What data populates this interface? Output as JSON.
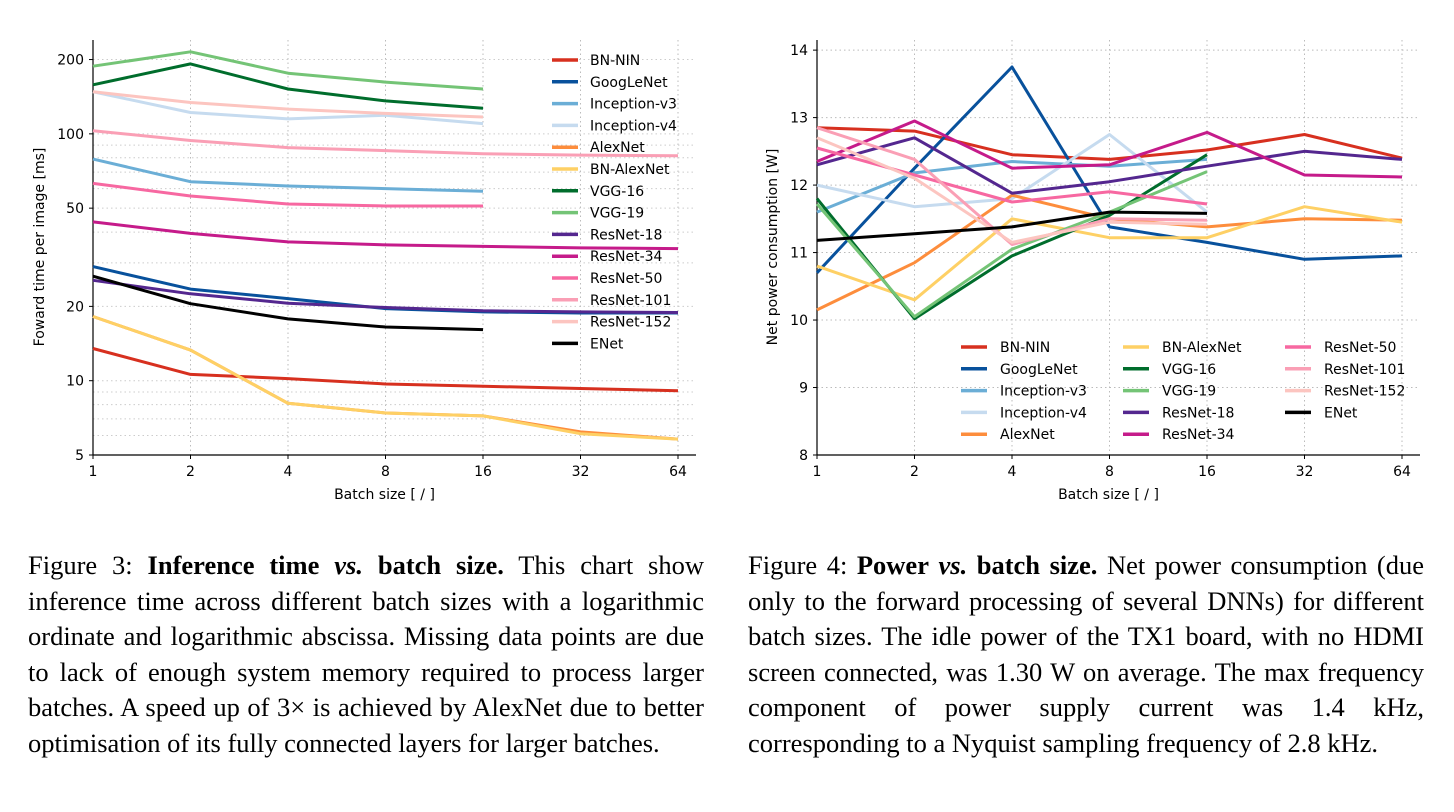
{
  "colors": {
    "BN-NIN": "#d7301f",
    "GoogLeNet": "#08519c",
    "Inception-v3": "#6baed6",
    "Inception-v4": "#c6dbef",
    "AlexNet": "#fd8d3c",
    "BN-AlexNet": "#fed065",
    "VGG-16": "#006d2c",
    "VGG-19": "#74c476",
    "ResNet-18": "#54278f",
    "ResNet-34": "#c51b8a",
    "ResNet-50": "#f768a1",
    "ResNet-101": "#fa9fb5",
    "ResNet-152": "#fcc5c0",
    "ENet": "#000000"
  },
  "chart_data": [
    {
      "type": "line",
      "xscale": "log2",
      "yscale": "log",
      "x": [
        1,
        2,
        4,
        8,
        16,
        32,
        64
      ],
      "xticks": [
        "1",
        "2",
        "4",
        "8",
        "16",
        "32",
        "64"
      ],
      "yticks": [
        5,
        10,
        20,
        50,
        100,
        200
      ],
      "ylim": [
        5,
        240
      ],
      "xlabel": "Batch size [ / ]",
      "ylabel": "Foward time per image [ms]",
      "legend": "top-right",
      "grid": true,
      "series": [
        {
          "name": "BN-NIN",
          "values": [
            13.5,
            10.6,
            10.2,
            9.7,
            9.5,
            9.3,
            9.1
          ]
        },
        {
          "name": "GoogLeNet",
          "values": [
            29,
            23.5,
            21.5,
            19.6,
            19,
            18.8,
            18.8
          ]
        },
        {
          "name": "Inception-v3",
          "values": [
            79,
            64,
            61.5,
            60,
            58.5,
            null,
            null
          ]
        },
        {
          "name": "Inception-v4",
          "values": [
            148,
            122,
            115,
            119,
            110,
            null,
            null
          ]
        },
        {
          "name": "AlexNet",
          "values": [
            18.2,
            13.3,
            8.1,
            7.4,
            7.2,
            6.2,
            5.8
          ]
        },
        {
          "name": "BN-AlexNet",
          "values": [
            18.2,
            13.3,
            8.1,
            7.4,
            7.2,
            6.1,
            5.8
          ]
        },
        {
          "name": "VGG-16",
          "values": [
            158,
            192,
            152,
            136,
            127,
            null,
            null
          ]
        },
        {
          "name": "VGG-19",
          "values": [
            188,
            215,
            176,
            162,
            152,
            null,
            null
          ]
        },
        {
          "name": "ResNet-18",
          "values": [
            25.5,
            22.5,
            20.6,
            19.8,
            19.2,
            19.0,
            18.9
          ]
        },
        {
          "name": "ResNet-34",
          "values": [
            44,
            39.5,
            36.5,
            35.5,
            35,
            34.5,
            34.3
          ]
        },
        {
          "name": "ResNet-50",
          "values": [
            63,
            56,
            52,
            51,
            51,
            null,
            null
          ]
        },
        {
          "name": "ResNet-101",
          "values": [
            103,
            94,
            88,
            85.5,
            83,
            82,
            81.5
          ]
        },
        {
          "name": "ResNet-152",
          "values": [
            148,
            134,
            126,
            121,
            117,
            null,
            null
          ]
        },
        {
          "name": "ENet",
          "values": [
            26.5,
            20.5,
            17.8,
            16.5,
            16.1,
            null,
            null
          ]
        }
      ]
    },
    {
      "type": "line",
      "xscale": "log2",
      "x": [
        1,
        2,
        4,
        8,
        16,
        32,
        64
      ],
      "xticks": [
        "1",
        "2",
        "4",
        "8",
        "16",
        "32",
        "64"
      ],
      "yticks": [
        8,
        9,
        10,
        11,
        12,
        13,
        14
      ],
      "ylim": [
        8,
        14.15
      ],
      "xlabel": "Batch size [ / ]",
      "ylabel": "Net power consumption [W]",
      "legend": "bottom-right, 3 columns",
      "grid": true,
      "series": [
        {
          "name": "BN-NIN",
          "values": [
            12.85,
            12.8,
            12.45,
            12.38,
            12.52,
            12.75,
            12.4
          ]
        },
        {
          "name": "GoogLeNet",
          "values": [
            10.7,
            12.25,
            13.75,
            11.38,
            11.15,
            10.9,
            10.95
          ]
        },
        {
          "name": "Inception-v3",
          "values": [
            11.6,
            12.18,
            12.35,
            12.28,
            12.38,
            null,
            null
          ]
        },
        {
          "name": "Inception-v4",
          "values": [
            12.0,
            11.68,
            11.8,
            12.75,
            11.6,
            null,
            null
          ]
        },
        {
          "name": "AlexNet",
          "values": [
            10.15,
            10.85,
            11.85,
            11.5,
            11.38,
            11.5,
            11.48
          ]
        },
        {
          "name": "BN-AlexNet",
          "values": [
            10.8,
            10.3,
            11.5,
            11.22,
            11.22,
            11.68,
            11.45
          ]
        },
        {
          "name": "VGG-16",
          "values": [
            11.8,
            10.02,
            10.95,
            11.55,
            12.45,
            null,
            null
          ]
        },
        {
          "name": "VGG-19",
          "values": [
            11.72,
            10.05,
            11.05,
            11.6,
            12.2,
            null,
            null
          ]
        },
        {
          "name": "ResNet-18",
          "values": [
            12.3,
            12.7,
            11.88,
            12.05,
            12.28,
            12.5,
            12.38
          ]
        },
        {
          "name": "ResNet-34",
          "values": [
            12.35,
            12.95,
            12.25,
            12.3,
            12.78,
            12.15,
            12.12
          ]
        },
        {
          "name": "ResNet-50",
          "values": [
            12.55,
            12.15,
            11.75,
            11.9,
            11.72,
            null,
            null
          ]
        },
        {
          "name": "ResNet-101",
          "values": [
            12.85,
            12.38,
            11.12,
            11.5,
            11.48,
            null,
            null
          ]
        },
        {
          "name": "ResNet-152",
          "values": [
            12.7,
            12.1,
            11.15,
            11.45,
            11.42,
            null,
            null
          ]
        },
        {
          "name": "ENet",
          "values": [
            11.18,
            11.28,
            11.38,
            11.6,
            11.58,
            null,
            null
          ]
        }
      ]
    }
  ],
  "captions": {
    "fig3": {
      "lead": "Figure 3:",
      "title_a": "Inference time",
      "title_vs": "vs.",
      "title_b": "batch size.",
      "body": "This chart show inference time across different batch sizes with a logarithmic ordinate and logarithmic abscissa. Missing data points are due to lack of enough system memory required to process larger batches. A speed up of 3× is achieved by AlexNet due to better optimisation of its fully connected layers for larger batches."
    },
    "fig4": {
      "lead": "Figure 4:",
      "title_a": "Power",
      "title_vs": "vs.",
      "title_b": "batch size.",
      "body": "Net power consumption (due only to the forward processing of several DNNs) for different batch sizes. The idle power of the TX1 board, with no HDMI screen connected, was 1.30 W on average. The max frequency component of power supply current was 1.4 kHz, corresponding to a Nyquist sampling frequency of 2.8 kHz."
    }
  }
}
